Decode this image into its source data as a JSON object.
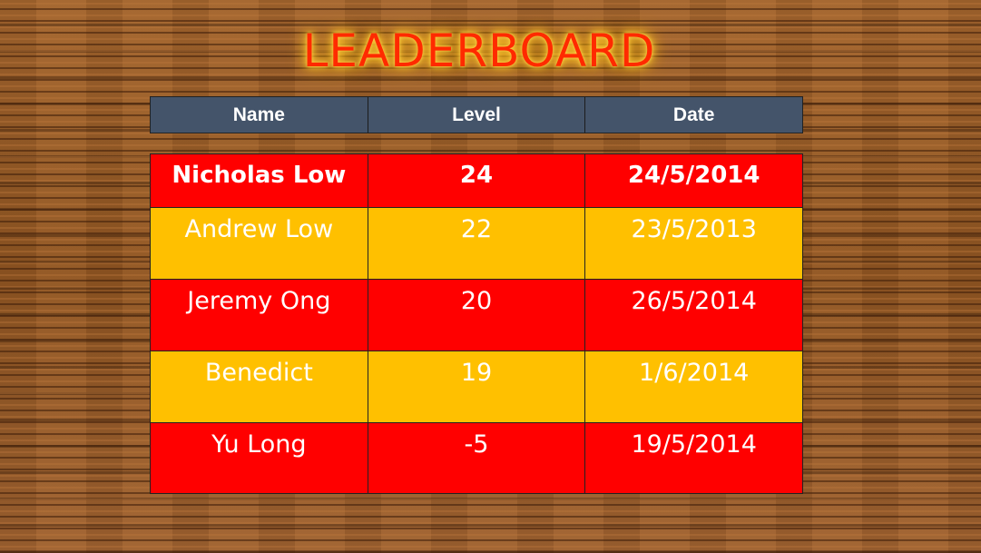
{
  "title": "LEADERBOARD",
  "columns": [
    "Name",
    "Level",
    "Date"
  ],
  "rows": [
    {
      "name": "Nicholas Low",
      "level": "24",
      "date": "24/5/2014"
    },
    {
      "name": "Andrew Low",
      "level": "22",
      "date": "23/5/2013"
    },
    {
      "name": "Jeremy Ong",
      "level": "20",
      "date": "26/5/2014"
    },
    {
      "name": "Benedict",
      "level": "19",
      "date": "1/6/2014"
    },
    {
      "name": "Yu Long",
      "level": "-5",
      "date": "19/5/2014"
    }
  ],
  "colors": {
    "title": "#ff2a00",
    "title_glow": "#ffc21f",
    "header_bg": "#44546a",
    "row_red": "#ff0000",
    "row_gold": "#ffc000",
    "text": "#ffffff"
  }
}
